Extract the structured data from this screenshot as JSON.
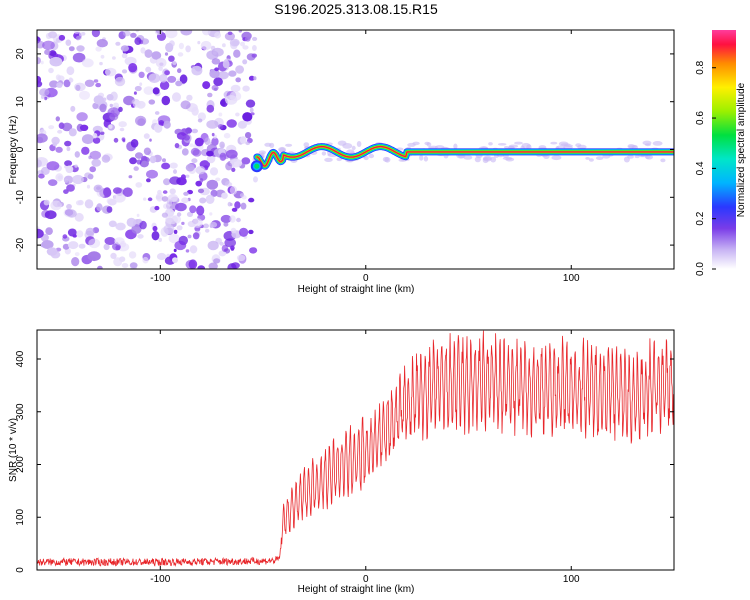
{
  "title": "S196.2025.313.08.15.R15",
  "colors": {
    "snr_line": "#e8262a",
    "waterfall_dot": "#8c3cf0",
    "ridge": "#e02040",
    "axis": "#000000",
    "background": "#ffffff"
  },
  "chart_data": [
    {
      "type": "heatmap",
      "name": "spectrogram",
      "xlabel": "Height of straight line (km)",
      "ylabel": "Frequency (Hz)",
      "xlim": [
        -160,
        150
      ],
      "ylim": [
        -25,
        25
      ],
      "xticks": [
        -100,
        0,
        100
      ],
      "yticks": [
        -20,
        -10,
        0,
        10,
        20
      ],
      "xtick_labels": [
        "-100",
        "0",
        "100"
      ],
      "ytick_labels": [
        "-20",
        "-10",
        "0",
        "10",
        "20"
      ],
      "noise_region_x": [
        -160,
        -55
      ],
      "signal_start_x": -55,
      "ridge_frequency_hz": -0.5,
      "colorbar": {
        "label": "Normalized spectral amplitude",
        "range": [
          0,
          0.95
        ],
        "ticks": [
          0.0,
          0.2,
          0.4,
          0.6,
          0.8
        ],
        "tick_labels": [
          "0.0",
          "0.2",
          "0.4",
          "0.6",
          "0.8"
        ],
        "colormap": [
          "#ffffff",
          "#b9a0f0",
          "#6020e0",
          "#2040ff",
          "#00c8ff",
          "#00e060",
          "#a0f000",
          "#ffff00",
          "#ff8000",
          "#ff0040",
          "#ff40a0"
        ]
      }
    },
    {
      "type": "line",
      "name": "snr",
      "xlabel": "Height of straight line (km)",
      "ylabel": "SNR (10 * v/v)",
      "xlim": [
        -160,
        150
      ],
      "ylim": [
        0,
        455
      ],
      "xticks": [
        -100,
        0,
        100
      ],
      "yticks": [
        0,
        100,
        200,
        300,
        400
      ],
      "xtick_labels": [
        "-100",
        "0",
        "100"
      ],
      "ytick_labels": [
        "0",
        "100",
        "200",
        "300",
        "400"
      ],
      "series": [
        {
          "name": "SNR",
          "x": [
            -160,
            -100,
            -50,
            -44,
            -42,
            -40,
            -30,
            -20,
            -10,
            0,
            10,
            20,
            30,
            40,
            60,
            80,
            100,
            120,
            130,
            140,
            150
          ],
          "y": [
            15,
            15,
            17,
            18,
            22,
            95,
            145,
            175,
            200,
            225,
            265,
            315,
            340,
            350,
            355,
            345,
            345,
            340,
            325,
            345,
            355
          ]
        }
      ]
    }
  ]
}
